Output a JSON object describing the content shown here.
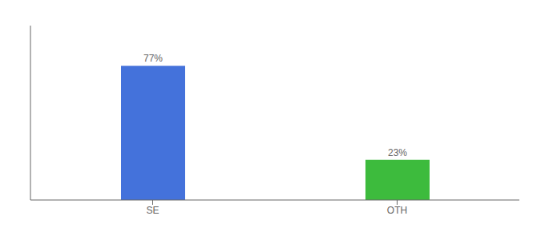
{
  "chart_data": {
    "type": "bar",
    "categories": [
      "SE",
      "OTH"
    ],
    "values": [
      77,
      23
    ],
    "value_labels": [
      "77%",
      "23%"
    ],
    "colors": [
      "#4472db",
      "#3dbb3d"
    ],
    "ylim": [
      0,
      100
    ],
    "data_labels": true,
    "tick_labels": "x",
    "grid": false
  }
}
